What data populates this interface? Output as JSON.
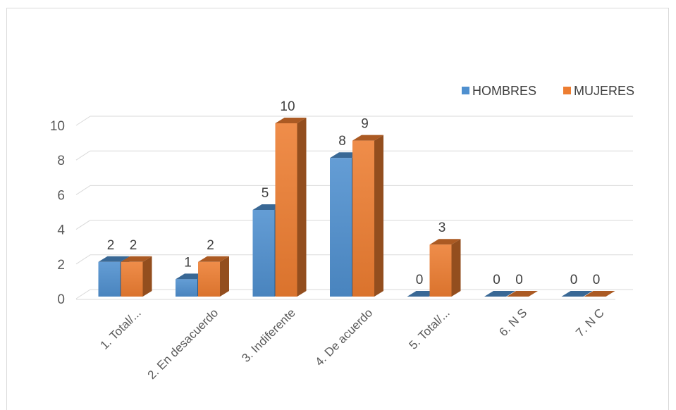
{
  "chart_data": {
    "type": "bar",
    "categories": [
      "1. Total/...",
      "2. En desacuerdo",
      "3. Indiferente",
      "4. De acuerdo",
      "5. Total/...",
      "6. N S",
      "7. N C"
    ],
    "series": [
      {
        "name": "HOMBRES",
        "values": [
          2,
          1,
          5,
          8,
          0,
          0,
          0
        ],
        "color": "#4f90cf"
      },
      {
        "name": "MUJERES",
        "values": [
          2,
          2,
          10,
          9,
          3,
          0,
          0
        ],
        "color": "#ed7d31"
      }
    ],
    "yticks": [
      0,
      2,
      4,
      6,
      8,
      10
    ],
    "ylim": [
      0,
      10
    ],
    "grid": true,
    "legend_position": "top-right"
  }
}
